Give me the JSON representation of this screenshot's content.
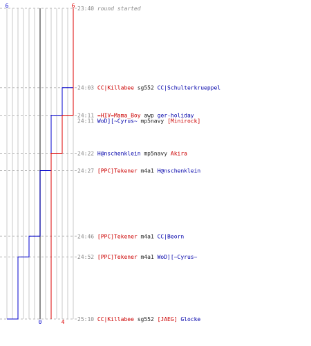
{
  "chart_data": {
    "type": "line",
    "teams": {
      "blue": {
        "color": "#0000cc",
        "start_count": "6",
        "end_count": "0"
      },
      "red": {
        "color": "#dd0000",
        "start_count": "6",
        "end_count": "4"
      }
    },
    "events": [
      {
        "time": "23:40",
        "minute": 0,
        "segments": [
          {
            "text": "round started",
            "color": "#888888",
            "italic": true
          }
        ]
      },
      {
        "time": "24:03",
        "minute": 23,
        "segments": [
          {
            "text": "CC|Killabee",
            "color": "#cc0000"
          },
          {
            "text": " sg552 ",
            "color": "#222222"
          },
          {
            "text": "CC|Schulterkrueppel",
            "color": "#0000aa"
          }
        ]
      },
      {
        "time": "24:11",
        "minute": 31,
        "segments": [
          {
            "text": "=HIV=Mama_Boy",
            "color": "#cc0000"
          },
          {
            "text": " awp ",
            "color": "#222222"
          },
          {
            "text": "ger-holiday",
            "color": "#0000aa"
          }
        ]
      },
      {
        "time": "24:11",
        "minute": 31,
        "segments": [
          {
            "text": "WoD][~Cyrus~",
            "color": "#0000aa"
          },
          {
            "text": " mp5navy ",
            "color": "#222222"
          },
          {
            "text": "[Minirock]",
            "color": "#cc0000"
          }
        ]
      },
      {
        "time": "24:22",
        "minute": 42,
        "segments": [
          {
            "text": "H@nschenklein",
            "color": "#0000aa"
          },
          {
            "text": " mp5navy ",
            "color": "#222222"
          },
          {
            "text": "Akira",
            "color": "#cc0000"
          }
        ]
      },
      {
        "time": "24:27",
        "minute": 47,
        "segments": [
          {
            "text": "[PPC]Tekener",
            "color": "#cc0000"
          },
          {
            "text": " m4a1 ",
            "color": "#222222"
          },
          {
            "text": "H@nschenklein",
            "color": "#0000aa"
          }
        ]
      },
      {
        "time": "24:46",
        "minute": 66,
        "segments": [
          {
            "text": "[PPC]Tekener",
            "color": "#cc0000"
          },
          {
            "text": " m4a1 ",
            "color": "#222222"
          },
          {
            "text": "CC|Beorn",
            "color": "#0000aa"
          }
        ]
      },
      {
        "time": "24:52",
        "minute": 72,
        "segments": [
          {
            "text": "[PPC]Tekener",
            "color": "#cc0000"
          },
          {
            "text": " m4a1 ",
            "color": "#222222"
          },
          {
            "text": "WoD][~Cyrus~",
            "color": "#0000aa"
          }
        ]
      },
      {
        "time": "25:10",
        "minute": 90,
        "segments": [
          {
            "text": "CC|Killabee",
            "color": "#cc0000"
          },
          {
            "text": " sg552 ",
            "color": "#222222"
          },
          {
            "text": "[JAEG]",
            "color": "#cc0000"
          },
          {
            "text": " Glocke",
            "color": "#0000aa"
          }
        ]
      }
    ],
    "series": [
      {
        "color": "#0000cc",
        "points": [
          {
            "minute": 0,
            "value": 6
          },
          {
            "minute": 23,
            "value": 5
          },
          {
            "minute": 31,
            "value": 4
          },
          {
            "minute": 47,
            "value": 3
          },
          {
            "minute": 66,
            "value": 2
          },
          {
            "minute": 72,
            "value": 1
          },
          {
            "minute": 90,
            "value": 0
          }
        ]
      },
      {
        "color": "#dd0000",
        "points": [
          {
            "minute": 0,
            "value": 6
          },
          {
            "minute": 31,
            "value": 5
          },
          {
            "minute": 42,
            "value": 4
          },
          {
            "minute": 90,
            "value": 4
          }
        ]
      }
    ],
    "ylim": [
      0,
      6
    ],
    "grid": true
  }
}
